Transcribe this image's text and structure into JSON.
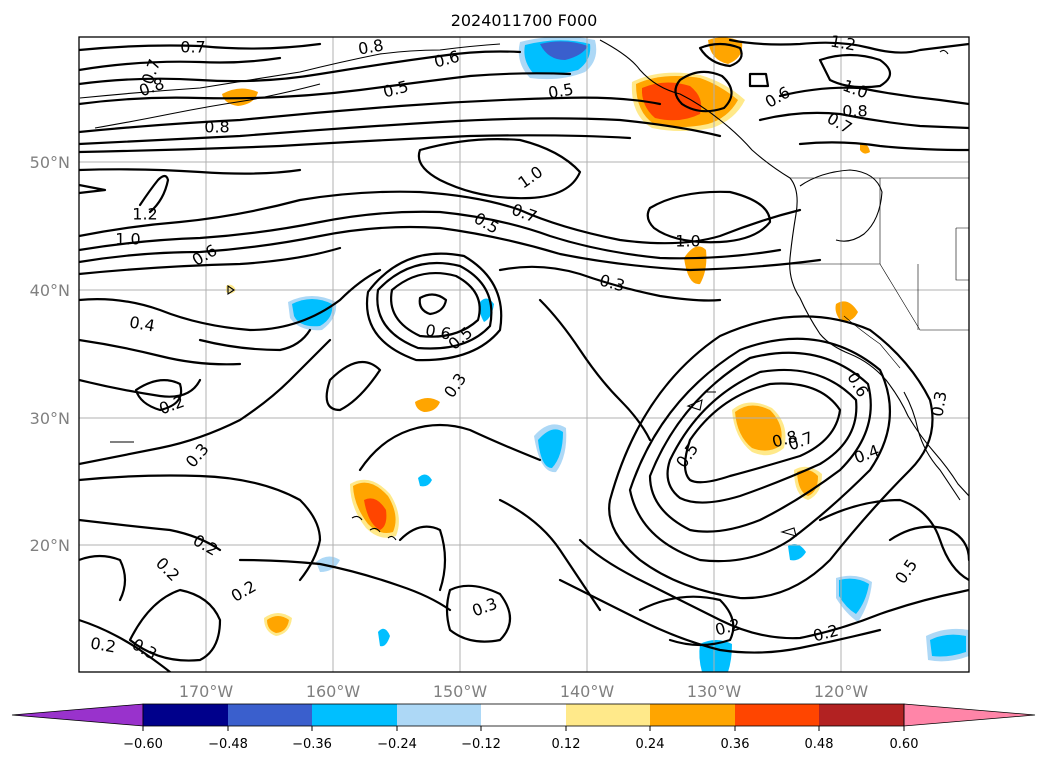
{
  "title": "2024011700 F000",
  "latitude_labels": [
    "50°N",
    "40°N",
    "30°N",
    "20°N"
  ],
  "longitude_labels": [
    "170°W",
    "160°W",
    "150°W",
    "140°W",
    "130°W",
    "120°W"
  ],
  "colorbar": {
    "ticks": [
      "−0.60",
      "−0.48",
      "−0.36",
      "−0.24",
      "−0.12",
      "0.12",
      "0.24",
      "0.36",
      "0.48",
      "0.60"
    ],
    "colors": [
      "#9932cc",
      "#00008b",
      "#3a5fcd",
      "#00bfff",
      "#add8f6",
      "#ffffff",
      "#ffe98a",
      "#ffa500",
      "#ff4500",
      "#b22222",
      "#ff85a8"
    ]
  },
  "contour_labels": [
    "0.7",
    "0.8",
    "0.7",
    "0.8",
    "0.5",
    "0.6",
    "0.8",
    "0.5",
    "1.2",
    "1.0",
    "0.8",
    "0.7",
    "0.6",
    "1.0",
    "0.7",
    "0.5",
    "1.2",
    "1.0",
    "0.6",
    "1.0",
    "0.3",
    "0.4",
    "0.6",
    "0.5",
    "0.2",
    "0.3",
    "0.3",
    "0.6",
    "0.5",
    "0.8",
    "0.7",
    "0.4",
    "0.3",
    "0.2",
    "0.2",
    "0.2",
    "0.2",
    "0.3",
    "0.3",
    "0.2",
    "0.2",
    "0.5"
  ]
}
